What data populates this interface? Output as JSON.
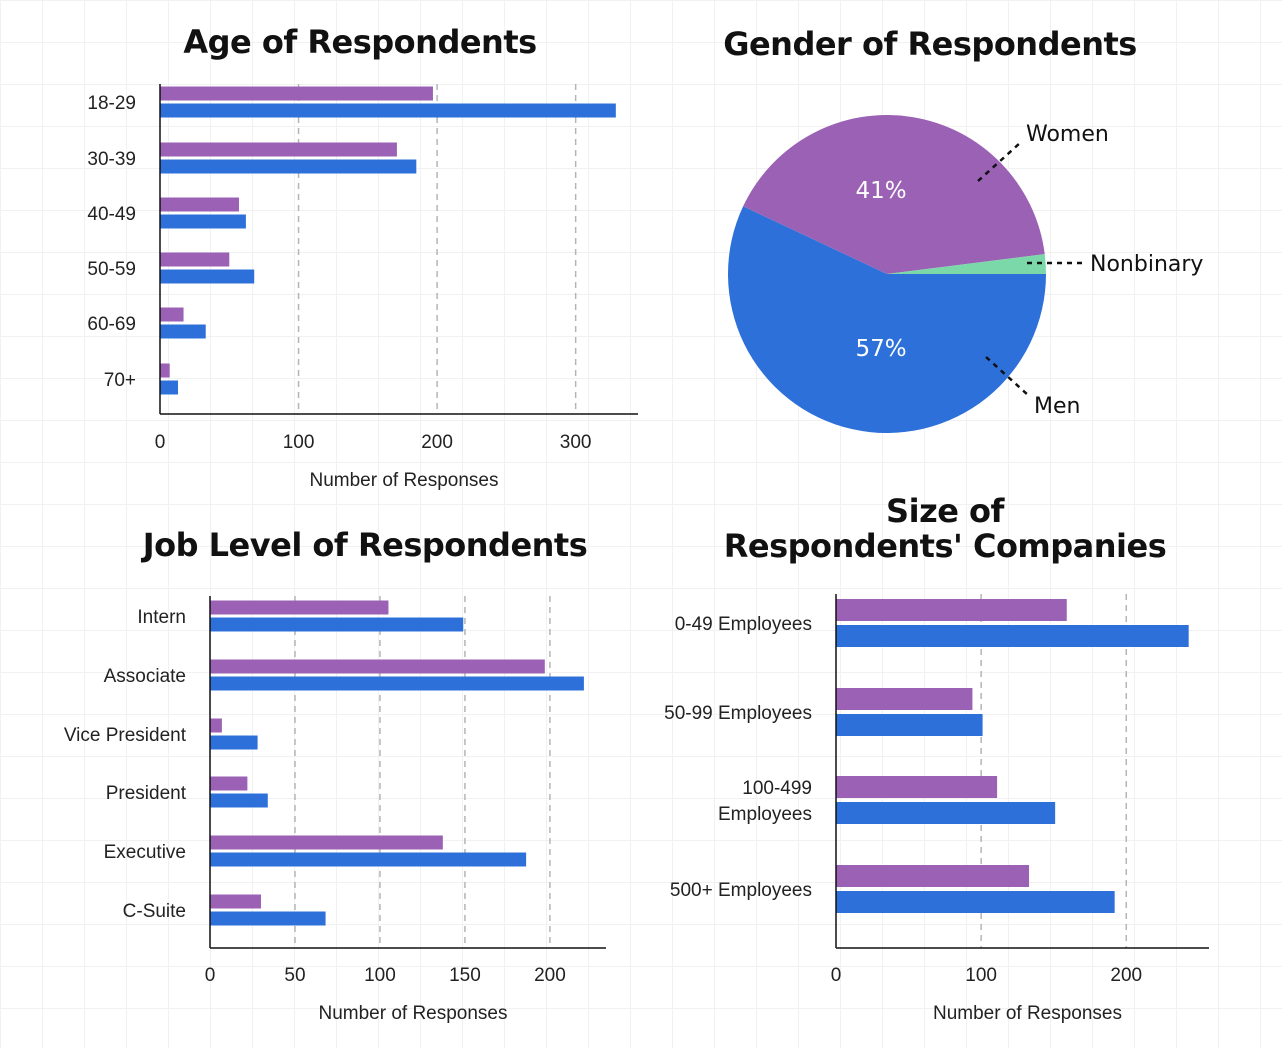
{
  "colors": {
    "series_a": "#9b61b5",
    "series_b": "#2d70d9",
    "nonbinary": "#7bd9a9"
  },
  "chart_data": [
    {
      "id": "age",
      "type": "bar",
      "orientation": "horizontal",
      "title": "Age of Respondents",
      "xlabel": "Number of Responses",
      "ylabel": "",
      "xlim": [
        0,
        345
      ],
      "xticks": [
        0,
        100,
        200,
        300
      ],
      "grid": "x-dashed",
      "categories": [
        "18-29",
        "30-39",
        "40-49",
        "50-59",
        "60-69",
        "70+"
      ],
      "series": [
        {
          "values": [
            197,
            171,
            57,
            50,
            17,
            7
          ]
        },
        {
          "values": [
            329,
            185,
            62,
            68,
            33,
            13
          ]
        }
      ]
    },
    {
      "id": "gender",
      "type": "pie",
      "title": "Gender of Respondents",
      "slices": [
        {
          "label": "Women",
          "value": 41,
          "pct_label": "41%"
        },
        {
          "label": "Nonbinary",
          "value": 2,
          "pct_label": ""
        },
        {
          "label": "Men",
          "value": 57,
          "pct_label": "57%"
        }
      ]
    },
    {
      "id": "job",
      "type": "bar",
      "orientation": "horizontal",
      "title": "Job Level of Respondents",
      "xlabel": "Number of Responses",
      "ylabel": "",
      "xlim": [
        0,
        233
      ],
      "xticks": [
        0,
        50,
        100,
        150,
        200
      ],
      "grid": "x-dashed",
      "categories": [
        "Intern",
        "Associate",
        "Vice President",
        "President",
        "Executive",
        "C-Suite"
      ],
      "series": [
        {
          "values": [
            105,
            197,
            7,
            22,
            137,
            30
          ]
        },
        {
          "values": [
            149,
            220,
            28,
            34,
            186,
            68
          ]
        }
      ]
    },
    {
      "id": "company",
      "type": "bar",
      "orientation": "horizontal",
      "title": "Size of\nRespondents' Companies",
      "xlabel": "Number of Responses",
      "ylabel": "",
      "xlim": [
        0,
        257
      ],
      "xticks": [
        0,
        100,
        200
      ],
      "grid": "x-dashed",
      "categories": [
        "0-49 Employees",
        "50-99 Employees",
        "100-499\nEmployees",
        "500+ Employees"
      ],
      "series": [
        {
          "values": [
            159,
            94,
            111,
            133
          ]
        },
        {
          "values": [
            243,
            101,
            151,
            192
          ]
        }
      ]
    }
  ]
}
